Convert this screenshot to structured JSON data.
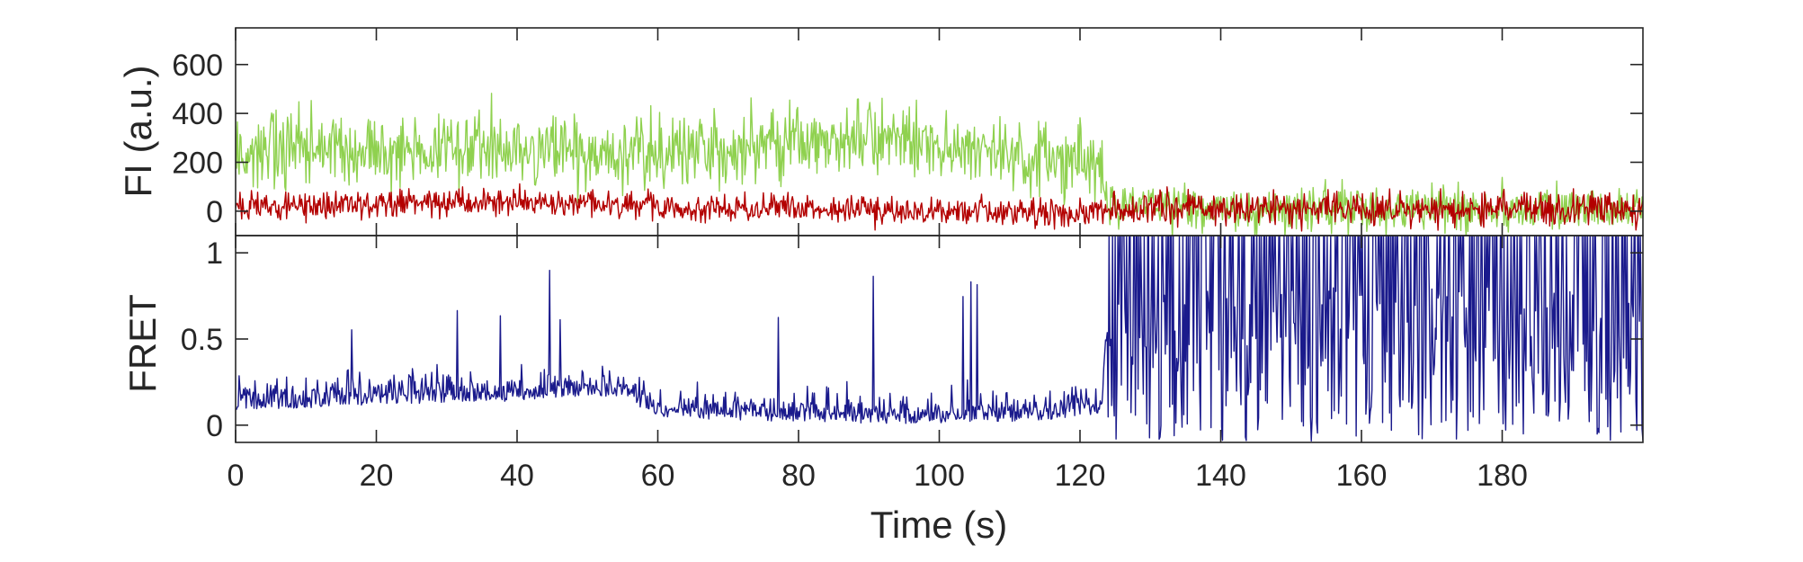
{
  "chart_data": [
    {
      "type": "line",
      "panel": "fluorescence",
      "ylabel": "FI (a.u.)",
      "xlabel": "",
      "xlim": [
        0,
        200
      ],
      "ylim": [
        -100,
        750
      ],
      "yticks": [
        0,
        200,
        400,
        600
      ],
      "ytick_labels": [
        "0",
        "200",
        "400",
        "600"
      ],
      "grid": false,
      "series": [
        {
          "color": "#8fd14f",
          "x": [
            0,
            10,
            20,
            30,
            40,
            50,
            60,
            70,
            80,
            90,
            100,
            110,
            120,
            123,
            124,
            130,
            140,
            150,
            160,
            170,
            180,
            190,
            200
          ],
          "values": [
            230,
            250,
            245,
            255,
            240,
            250,
            240,
            260,
            270,
            290,
            270,
            240,
            215,
            210,
            20,
            10,
            10,
            10,
            10,
            10,
            10,
            10,
            10
          ]
        },
        {
          "color": "#b30000",
          "x": [
            0,
            10,
            20,
            30,
            40,
            50,
            60,
            70,
            80,
            90,
            100,
            110,
            120,
            123,
            124,
            130,
            140,
            150,
            160,
            170,
            180,
            190,
            200
          ],
          "values": [
            20,
            25,
            30,
            35,
            30,
            35,
            20,
            10,
            5,
            0,
            5,
            -5,
            -5,
            -5,
            5,
            10,
            10,
            10,
            10,
            10,
            10,
            10,
            10
          ]
        }
      ]
    },
    {
      "type": "line",
      "panel": "fret",
      "ylabel": "FRET",
      "xlabel": "Time (s)",
      "xlim": [
        0,
        200
      ],
      "ylim": [
        -0.1,
        1.1
      ],
      "xticks": [
        0,
        20,
        40,
        60,
        80,
        100,
        120,
        140,
        160,
        180
      ],
      "xtick_labels": [
        "0",
        "20",
        "40",
        "60",
        "80",
        "100",
        "120",
        "140",
        "160",
        "180"
      ],
      "yticks": [
        0,
        0.5,
        1
      ],
      "ytick_labels": [
        "0",
        "0.5",
        "1"
      ],
      "grid": false,
      "series": [
        {
          "color": "#1a1a8c",
          "x": [
            0,
            10,
            20,
            30,
            40,
            50,
            55,
            60,
            70,
            80,
            90,
            100,
            110,
            115,
            120,
            123,
            124,
            130,
            140,
            150,
            160,
            170,
            180,
            190,
            200
          ],
          "values": [
            0.12,
            0.13,
            0.15,
            0.16,
            0.17,
            0.2,
            0.19,
            0.08,
            0.06,
            0.05,
            0.04,
            0.04,
            0.05,
            0.06,
            0.08,
            0.1,
            0.55,
            0.55,
            0.55,
            0.55,
            0.55,
            0.55,
            0.55,
            0.55,
            0.55
          ]
        }
      ]
    }
  ]
}
